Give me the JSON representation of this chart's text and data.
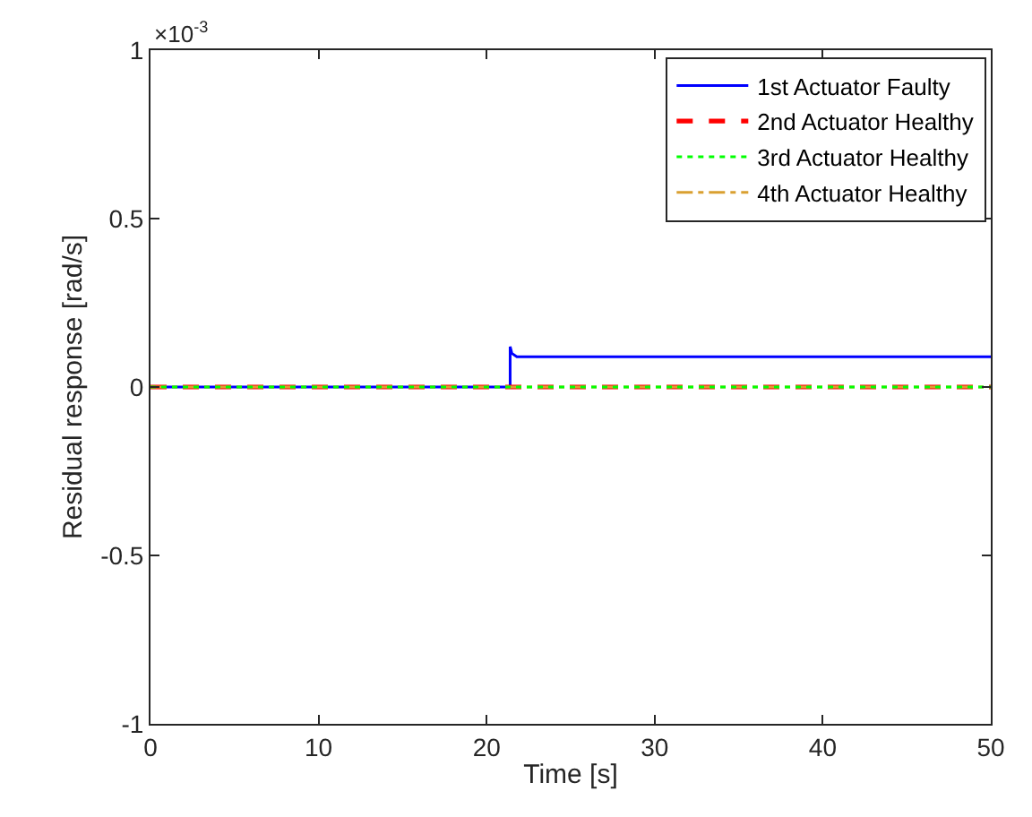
{
  "chart_data": {
    "type": "line",
    "xlabel": "Time [s]",
    "ylabel": "Residual response [rad/s]",
    "annotations": [
      "×10$^{-3}$"
    ],
    "xlim": [
      0,
      50
    ],
    "xticks": [
      0,
      10,
      20,
      30,
      40,
      50
    ],
    "ylim": [
      -1,
      1
    ],
    "yticks": [
      -1,
      -0.5,
      0,
      0.5,
      1
    ],
    "legend": "top right",
    "marker": "none",
    "series": [
      {
        "name": "1st Actuator Faulty",
        "color": "#0000ff",
        "line_style": "solid",
        "x": [
          0,
          21.4,
          21.4,
          21.5,
          21.8,
          50
        ],
        "values": [
          0,
          0,
          0.12,
          0.1,
          0.09,
          0.09
        ]
      },
      {
        "name": "2nd Actuator Healthy",
        "color": "#ff0000",
        "line_style": "dashed",
        "x": [
          0,
          50
        ],
        "values": [
          0,
          0
        ]
      },
      {
        "name": "3rd Actuator Healthy",
        "color": "#00ff00",
        "line_style": "dotted",
        "x": [
          0,
          50
        ],
        "values": [
          0,
          0
        ]
      },
      {
        "name": "4th Actuator Healthy",
        "color": "#d9a031",
        "line_style": "dashdot",
        "x": [
          0,
          50
        ],
        "values": [
          0,
          0
        ]
      }
    ]
  }
}
